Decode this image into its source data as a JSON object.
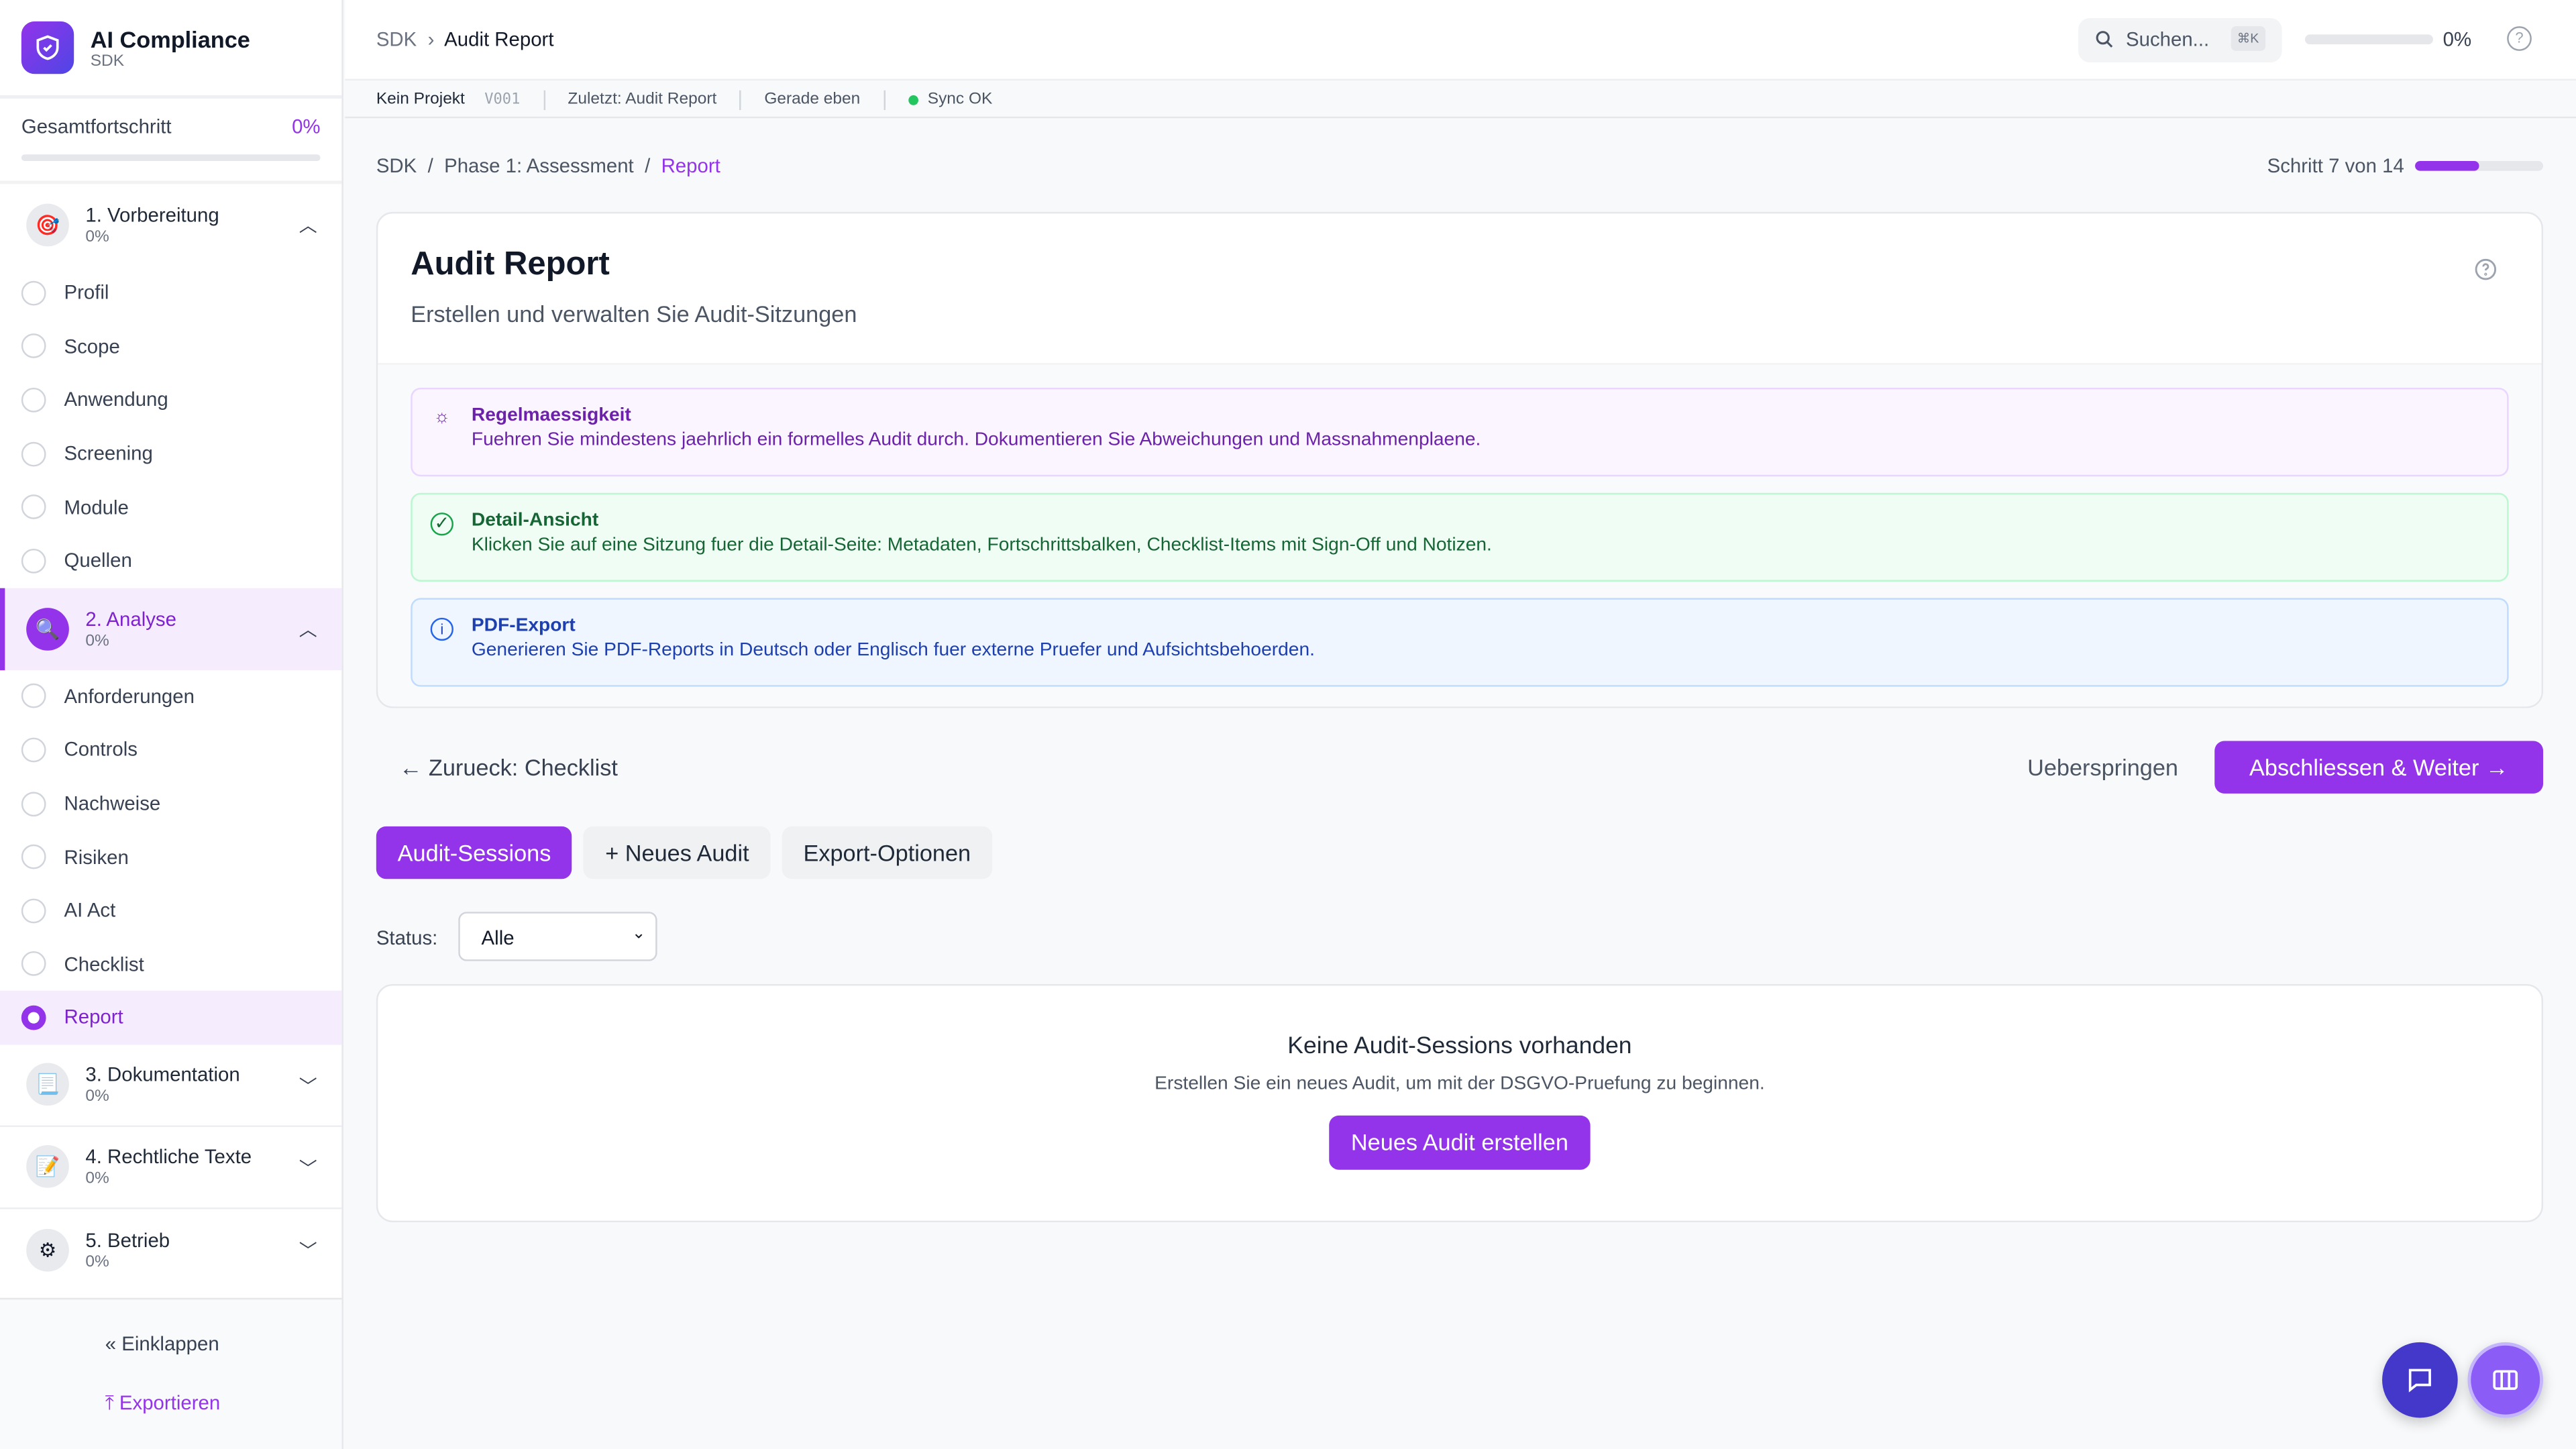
{
  "app": {
    "title": "AI Compliance",
    "subtitle": "SDK"
  },
  "sidebar": {
    "total_label": "Gesamtfortschritt",
    "total_pct": "0%",
    "phases": [
      {
        "title": "1. Vorbereitung",
        "pct": "0%",
        "icon": "target-icon",
        "steps": [
          "Profil",
          "Scope",
          "Anwendung",
          "Screening",
          "Module",
          "Quellen"
        ]
      },
      {
        "title": "2. Analyse",
        "pct": "0%",
        "icon": "magnifier-icon",
        "steps": [
          "Anforderungen",
          "Controls",
          "Nachweise",
          "Risiken",
          "AI Act",
          "Checklist",
          "Report"
        ]
      },
      {
        "title": "3. Dokumentation",
        "pct": "0%",
        "icon": "document-icon"
      },
      {
        "title": "4. Rechtliche Texte",
        "pct": "0%",
        "icon": "pencil-icon"
      },
      {
        "title": "5. Betrieb",
        "pct": "0%",
        "icon": "gear-icon"
      }
    ],
    "active_step": "Report",
    "collapse": "Einklappen",
    "export": "Exportieren"
  },
  "topbar": {
    "crumb_root": "SDK",
    "crumb_current": "Audit Report",
    "search_placeholder": "Suchen...",
    "shortcut": "⌘K",
    "progress": "0%",
    "progress_value": 0
  },
  "subbar": {
    "project": "Kein Projekt",
    "version": "V001",
    "last": "Zuletzt: Audit Report",
    "time": "Gerade eben",
    "sync": "Sync OK"
  },
  "breadcrumb": {
    "root": "SDK",
    "phase": "Phase 1: Assessment",
    "current": "Report"
  },
  "step": {
    "label": "Schritt 7 von 14",
    "current": 7,
    "total": 14
  },
  "card": {
    "title": "Audit Report",
    "subtitle": "Erstellen und verwalten Sie Audit-Sitzungen",
    "tips": [
      {
        "title": "Regelmaessigkeit",
        "text": "Fuehren Sie mindestens jaehrlich ein formelles Audit durch. Dokumentieren Sie Abweichungen und Massnahmenplaene."
      },
      {
        "title": "Detail-Ansicht",
        "text": "Klicken Sie auf eine Sitzung fuer die Detail-Seite: Metadaten, Fortschrittsbalken, Checklist-Items mit Sign-Off und Notizen."
      },
      {
        "title": "PDF-Export",
        "text": "Generieren Sie PDF-Reports in Deutsch oder Englisch fuer externe Pruefer und Aufsichtsbehoerden."
      }
    ]
  },
  "nav": {
    "back": "Zurueck: Checklist",
    "skip": "Ueberspringen",
    "next": "Abschliessen & Weiter"
  },
  "tabs": [
    "Audit-Sessions",
    "+ Neues Audit",
    "Export-Optionen"
  ],
  "filter": {
    "label": "Status:",
    "value": "Alle"
  },
  "empty": {
    "title": "Keine Audit-Sessions vorhanden",
    "text": "Erstellen Sie ein neues Audit, um mit der DSGVO-Pruefung zu beginnen.",
    "button": "Neues Audit erstellen"
  },
  "colors": {
    "accent": "#9333ea"
  }
}
